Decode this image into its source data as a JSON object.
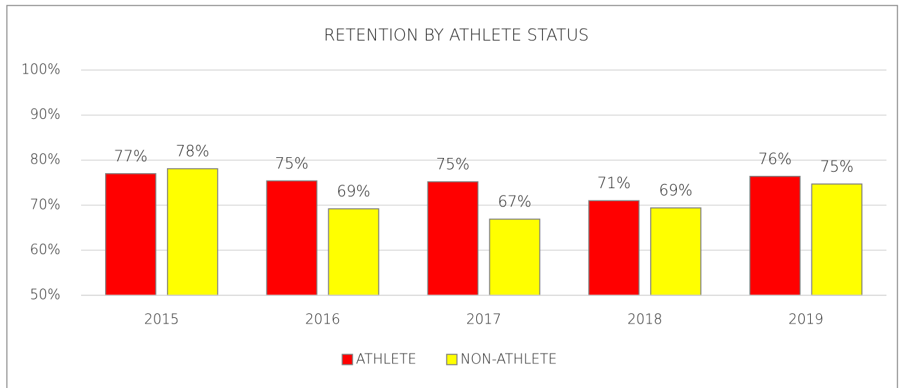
{
  "chart_data": {
    "type": "bar",
    "title": "RETENTION BY ATHLETE STATUS",
    "categories": [
      "2015",
      "2016",
      "2017",
      "2018",
      "2019"
    ],
    "series": [
      {
        "name": "ATHLETE",
        "color": "#ff0000",
        "values": [
          77.0,
          75.4,
          75.2,
          71.0,
          76.4
        ],
        "value_labels": [
          "77%",
          "75%",
          "75%",
          "71%",
          "76%"
        ]
      },
      {
        "name": "NON-ATHLETE",
        "color": "#ffff00",
        "values": [
          78.1,
          69.2,
          66.9,
          69.4,
          74.7
        ],
        "value_labels": [
          "78%",
          "69%",
          "67%",
          "69%",
          "75%"
        ]
      }
    ],
    "ylim": [
      50,
      100
    ],
    "yticks": [
      {
        "value": 50,
        "label": "50%"
      },
      {
        "value": 60,
        "label": "60%"
      },
      {
        "value": 70,
        "label": "70%"
      },
      {
        "value": 80,
        "label": "80%"
      },
      {
        "value": 90,
        "label": "90%"
      },
      {
        "value": 100,
        "label": "100%"
      }
    ],
    "grid": true,
    "legend": "bottom"
  }
}
